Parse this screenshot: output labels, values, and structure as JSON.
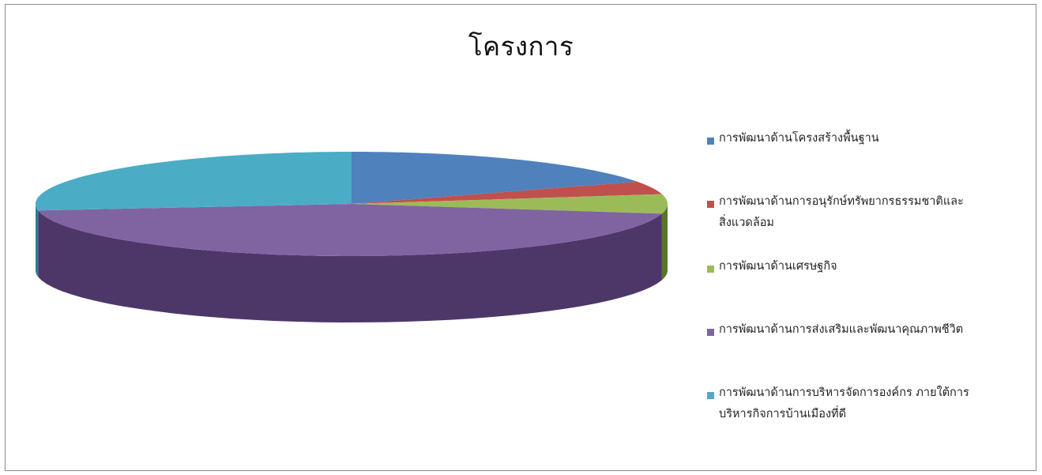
{
  "chart_data": {
    "type": "pie",
    "title": "โครงการ",
    "style": "3d",
    "legend_position": "right",
    "categories": [
      "การพัฒนาด้านโครงสร้างพื้นฐาน",
      "การพัฒนาด้านการอนุรักษ์ทรัพยากรธรรมชาติและสิ่งแวดล้อม",
      "การพัฒนาด้านเศรษฐกิจ",
      "การพัฒนาด้านการส่งเสริมและพัฒนาคุณภาพชีวิต",
      "การพัฒนาด้านการบริหารจัดการองค์กร ภายใต้การบริหารกิจการบ้านเมืองที่ดี"
    ],
    "values": [
      18,
      4,
      6,
      45,
      27
    ],
    "colors": [
      "#4f81bd",
      "#c0504d",
      "#9bbb59",
      "#8064a2",
      "#4bacc6"
    ],
    "side_colors": [
      "#34587f",
      "#802f2d",
      "#58752d",
      "#4d3769",
      "#2b7d93"
    ]
  },
  "legend": {
    "items": [
      {
        "lines": [
          "การพัฒนาด้านโครงสร้างพื้นฐาน"
        ]
      },
      {
        "lines": [
          "การพัฒนาด้านการอนุรักษ์ทรัพยากรธรรมชาติและ",
          "สิ่งแวดล้อม"
        ]
      },
      {
        "lines": [
          "การพัฒนาด้านเศรษฐกิจ"
        ]
      },
      {
        "lines": [
          "การพัฒนาด้านการส่งเสริมและพัฒนาคุณภาพชีวิต"
        ]
      },
      {
        "lines": [
          "การพัฒนาด้านการบริหารจัดการองค์กร ภายใต้การ",
          "บริหารกิจการบ้านเมืองที่ดี"
        ]
      }
    ]
  }
}
